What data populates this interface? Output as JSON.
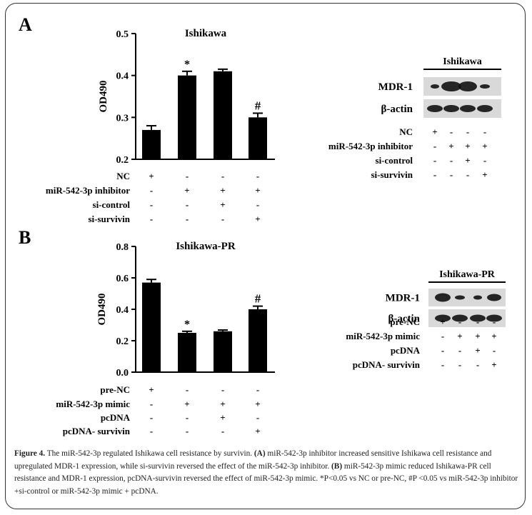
{
  "panels": [
    {
      "letter": "A",
      "chart_title": "Ishikawa",
      "ylabel": "OD490",
      "blot_title": "Ishikawa",
      "blot_rows": [
        "MDR-1",
        "β-actin"
      ],
      "treatments_left": [
        {
          "label": "NC",
          "marks": [
            "+",
            "-",
            "-",
            "-"
          ]
        },
        {
          "label": "miR-542-3p inhibitor",
          "marks": [
            "-",
            "+",
            "+",
            "+"
          ]
        },
        {
          "label": "si-control",
          "marks": [
            "-",
            "-",
            "+",
            "-"
          ]
        },
        {
          "label": "si-survivin",
          "marks": [
            "-",
            "-",
            "-",
            "+"
          ]
        }
      ],
      "treatments_right": [
        {
          "label": "NC",
          "marks": [
            "+",
            "-",
            "-",
            "-"
          ]
        },
        {
          "label": "miR-542-3p inhibitor",
          "marks": [
            "-",
            "+",
            "+",
            "+"
          ]
        },
        {
          "label": "si-control",
          "marks": [
            "-",
            "-",
            "+",
            "-"
          ]
        },
        {
          "label": "si-survivin",
          "marks": [
            "-",
            "-",
            "-",
            "+"
          ]
        }
      ]
    },
    {
      "letter": "B",
      "chart_title": "Ishikawa-PR",
      "ylabel": "OD490",
      "blot_title": "Ishikawa-PR",
      "blot_rows": [
        "MDR-1",
        "β-actin"
      ],
      "treatments_left": [
        {
          "label": "pre-NC",
          "marks": [
            "+",
            "-",
            "-",
            "-"
          ]
        },
        {
          "label": "miR-542-3p mimic",
          "marks": [
            "-",
            "+",
            "+",
            "+"
          ]
        },
        {
          "label": "pcDNA",
          "marks": [
            "-",
            "-",
            "+",
            "-"
          ]
        },
        {
          "label": "pcDNA- survivin",
          "marks": [
            "-",
            "-",
            "-",
            "+"
          ]
        }
      ],
      "treatments_right": [
        {
          "label": "pre-NC",
          "marks": [
            "+",
            "-",
            "-",
            "-"
          ]
        },
        {
          "label": "miR-542-3p mimic",
          "marks": [
            "-",
            "+",
            "+",
            "+"
          ]
        },
        {
          "label": "pcDNA",
          "marks": [
            "-",
            "-",
            "+",
            "-"
          ]
        },
        {
          "label": "pcDNA- survivin",
          "marks": [
            "-",
            "-",
            "-",
            "+"
          ]
        }
      ]
    }
  ],
  "chart_data": [
    {
      "type": "bar",
      "title": "Ishikawa",
      "ylabel": "OD490",
      "ylim": [
        0.2,
        0.5
      ],
      "yticks": [
        0.2,
        0.3,
        0.4,
        0.5
      ],
      "ytick_labels": [
        "0.2",
        "0.3",
        "0.4",
        "0.5"
      ],
      "values": [
        0.27,
        0.4,
        0.41,
        0.3
      ],
      "errors": [
        0.01,
        0.01,
        0.005,
        0.01
      ],
      "annotations": [
        "",
        "*",
        "",
        "#"
      ],
      "color": "#000000"
    },
    {
      "type": "bar",
      "title": "Ishikawa-PR",
      "ylabel": "OD490",
      "ylim": [
        0.0,
        0.8
      ],
      "yticks": [
        0.0,
        0.2,
        0.4,
        0.6,
        0.8
      ],
      "ytick_labels": [
        "0.0",
        "0.2",
        "0.4",
        "0.6",
        "0.8"
      ],
      "values": [
        0.57,
        0.25,
        0.26,
        0.4
      ],
      "errors": [
        0.02,
        0.01,
        0.008,
        0.02
      ],
      "annotations": [
        "",
        "*",
        "",
        "#"
      ],
      "color": "#000000"
    }
  ],
  "caption": {
    "fig_label": "Figure 4.",
    "t1": " The miR-542-3p regulated Ishikawa cell resistance by survivin. ",
    "a_label": "(A)",
    "t2": " miR-542-3p inhibitor increased sensitive Ishikawa cell resistance and upregulated MDR-1 expression, while si-survivin reversed the effect of the miR-542-3p inhibitor. ",
    "b_label": "(B)",
    "t3": " miR-542-3p mimic reduced Ishikawa-PR cell resistance and MDR-1 expression, pcDNA-survivin reversed the effect of miR-542-3p mimic. *P<0.05 vs NC or pre-NC, #P <0.05 vs miR-542-3p inhibitor +si-control or miR-542-3p mimic + pcDNA."
  }
}
